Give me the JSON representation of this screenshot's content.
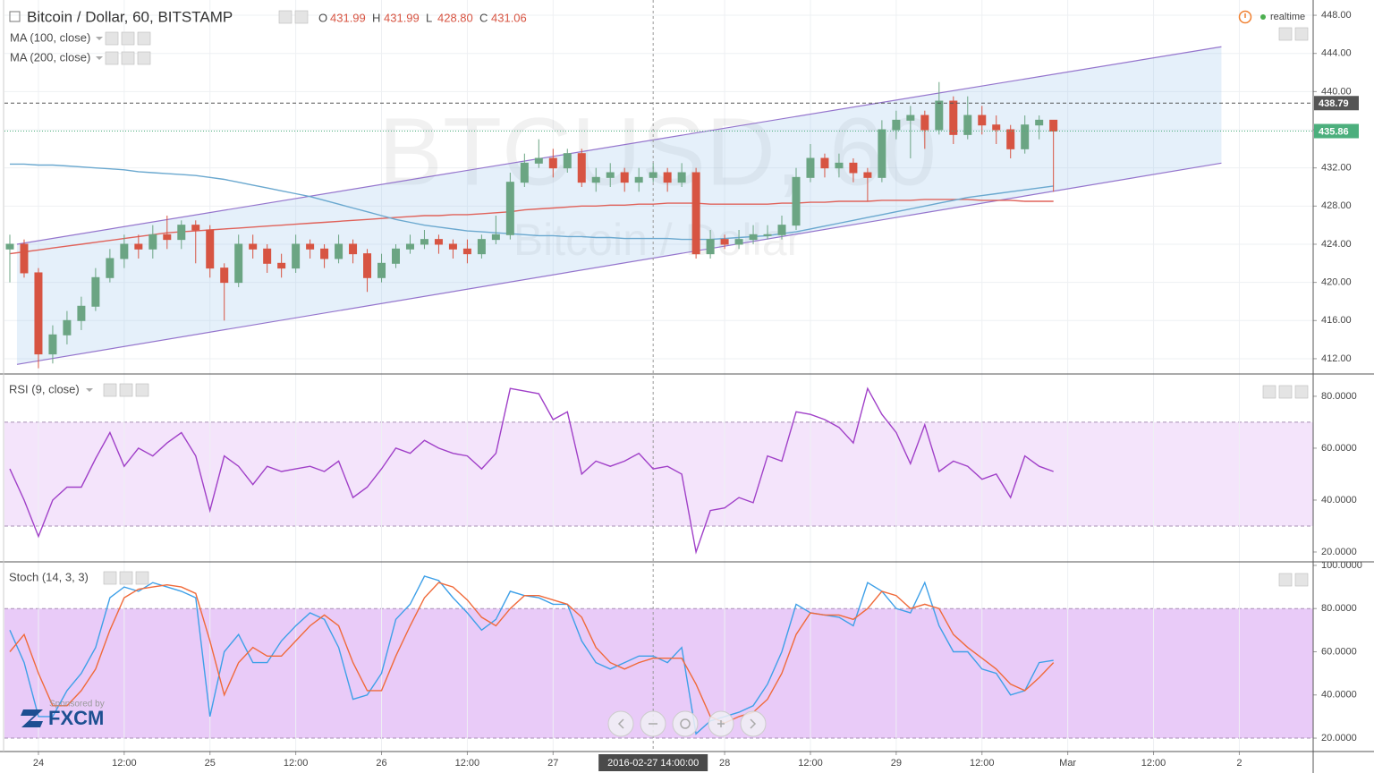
{
  "chart_data": [
    {
      "type": "candlestick",
      "title": "Bitcoin / Dollar, 60, BITSTAMP",
      "ohlc_legend": [
        {
          "key": "O",
          "value": "431.99"
        },
        {
          "key": "H",
          "value": "431.99"
        },
        {
          "key": "L",
          "value": "428.80"
        },
        {
          "key": "C",
          "value": "431.06"
        }
      ],
      "status": "realtime",
      "watermark": "BTCUSD, 60",
      "watermark_subtitle": "Bitcoin / Dollar",
      "sponsor": "Sponsored by",
      "sponsor_name": "FXCM",
      "up_color": "#6ba583",
      "down_color": "#d75442",
      "x": [
        "2016-02-23 20:00",
        "2016-02-23 22:00",
        "2016-02-24 00:00",
        "2016-02-24 02:00",
        "2016-02-24 04:00",
        "2016-02-24 06:00",
        "2016-02-24 08:00",
        "2016-02-24 10:00",
        "2016-02-24 12:00",
        "2016-02-24 14:00",
        "2016-02-24 16:00",
        "2016-02-24 18:00",
        "2016-02-24 20:00",
        "2016-02-24 22:00",
        "2016-02-25 00:00",
        "2016-02-25 02:00",
        "2016-02-25 04:00",
        "2016-02-25 06:00",
        "2016-02-25 08:00",
        "2016-02-25 10:00",
        "2016-02-25 12:00",
        "2016-02-25 14:00",
        "2016-02-25 16:00",
        "2016-02-25 18:00",
        "2016-02-25 20:00",
        "2016-02-25 22:00",
        "2016-02-26 00:00",
        "2016-02-26 02:00",
        "2016-02-26 04:00",
        "2016-02-26 06:00",
        "2016-02-26 08:00",
        "2016-02-26 10:00",
        "2016-02-26 12:00",
        "2016-02-26 14:00",
        "2016-02-26 16:00",
        "2016-02-26 18:00",
        "2016-02-26 20:00",
        "2016-02-26 22:00",
        "2016-02-27 00:00",
        "2016-02-27 02:00",
        "2016-02-27 04:00",
        "2016-02-27 06:00",
        "2016-02-27 08:00",
        "2016-02-27 10:00",
        "2016-02-27 12:00",
        "2016-02-27 14:00",
        "2016-02-27 16:00",
        "2016-02-27 18:00",
        "2016-02-27 20:00",
        "2016-02-27 22:00",
        "2016-02-28 00:00",
        "2016-02-28 02:00",
        "2016-02-28 04:00",
        "2016-02-28 06:00",
        "2016-02-28 08:00",
        "2016-02-28 10:00",
        "2016-02-28 12:00",
        "2016-02-28 14:00",
        "2016-02-28 16:00",
        "2016-02-28 18:00",
        "2016-02-28 20:00",
        "2016-02-28 22:00",
        "2016-02-29 00:00",
        "2016-02-29 02:00",
        "2016-02-29 04:00",
        "2016-02-29 06:00",
        "2016-02-29 08:00",
        "2016-02-29 10:00",
        "2016-02-29 12:00",
        "2016-02-29 14:00",
        "2016-02-29 16:00",
        "2016-02-29 18:00",
        "2016-02-29 20:00",
        "2016-02-29 22:00"
      ],
      "open": [
        423.5,
        424.0,
        421.0,
        412.5,
        414.5,
        416.0,
        417.5,
        420.5,
        422.5,
        424.0,
        423.5,
        425.0,
        424.5,
        426.0,
        425.5,
        421.5,
        420.0,
        424.0,
        423.5,
        422.0,
        421.5,
        424.0,
        423.5,
        422.5,
        424.0,
        423.0,
        420.5,
        422.0,
        423.5,
        424.0,
        424.5,
        424.0,
        423.5,
        423.0,
        424.5,
        425.0,
        430.5,
        432.5,
        433.0,
        432.0,
        433.5,
        430.5,
        431.0,
        431.5,
        430.5,
        431.0,
        431.5,
        430.5,
        431.5,
        423.0,
        424.5,
        424.0,
        424.5,
        425.0,
        425.0,
        426.0,
        431.0,
        433.0,
        432.0,
        432.5,
        431.5,
        431.0,
        436.0,
        437.0,
        437.5,
        436.0,
        439.0,
        435.5,
        437.5,
        436.5,
        436.0,
        434.0,
        436.5,
        437.0
      ],
      "high": [
        425,
        424.5,
        421.5,
        415.5,
        417,
        418.5,
        421.5,
        423.5,
        425,
        425,
        426,
        427,
        426.5,
        426.5,
        426,
        422,
        425,
        425,
        424,
        423,
        425,
        424.5,
        424,
        425,
        424.5,
        423.5,
        423,
        424,
        425,
        425.5,
        425,
        424.5,
        424.5,
        425,
        427,
        431.5,
        433.5,
        435,
        434,
        434,
        434,
        432,
        432.5,
        432,
        432,
        432.5,
        432,
        432.5,
        432,
        425.5,
        425,
        425.5,
        426,
        426,
        427,
        432,
        434.5,
        433.5,
        433.5,
        433,
        432,
        437,
        438,
        438.5,
        438,
        441,
        439.5,
        439.5,
        438.5,
        437.5,
        436.5,
        437.5,
        437.5,
        437
      ],
      "low": [
        420,
        420.5,
        411,
        411.5,
        413.5,
        415,
        417,
        420,
        421.5,
        422.5,
        422.5,
        423.5,
        423.5,
        422,
        420.5,
        416,
        419.5,
        422.5,
        421,
        420.5,
        421,
        422.5,
        421.5,
        422,
        422,
        419,
        420,
        421.5,
        423,
        423.5,
        423,
        422.5,
        422,
        422.5,
        424,
        424.5,
        430,
        432,
        431,
        431.5,
        430,
        429.5,
        430,
        429.5,
        429.5,
        430.5,
        429.5,
        430,
        422.5,
        422.5,
        423.5,
        423.5,
        424,
        424.5,
        424.5,
        425.5,
        430.5,
        431,
        431,
        430.5,
        428.5,
        430.5,
        435,
        433,
        434,
        435.5,
        434.5,
        435,
        435.5,
        434.5,
        433,
        433.5,
        435,
        429.5
      ],
      "close": [
        424.0,
        421.0,
        412.5,
        414.5,
        416.0,
        417.5,
        420.5,
        422.5,
        424.0,
        423.5,
        425.0,
        424.5,
        426.0,
        425.5,
        421.5,
        420.0,
        424.0,
        423.5,
        422.0,
        421.5,
        424.0,
        423.5,
        422.5,
        424.0,
        423.0,
        420.5,
        422.0,
        423.5,
        424.0,
        424.5,
        424.0,
        423.5,
        423.0,
        424.5,
        425.0,
        430.5,
        432.5,
        433.0,
        432.0,
        433.5,
        430.5,
        431.0,
        431.5,
        430.5,
        431.0,
        431.5,
        430.5,
        431.5,
        423.0,
        424.5,
        424.0,
        424.5,
        425.0,
        425.0,
        426.0,
        431.0,
        433.0,
        432.0,
        432.5,
        431.5,
        431.0,
        436.0,
        437.0,
        437.5,
        436.0,
        439.0,
        435.5,
        437.5,
        436.5,
        436.0,
        434.0,
        436.5,
        437.0,
        435.86
      ],
      "series": [
        {
          "name": "MA (100, close)",
          "color": "#e0625a",
          "values": [
            423.0,
            423.2,
            423.4,
            423.6,
            423.8,
            424.0,
            424.2,
            424.4,
            424.6,
            424.8,
            425.0,
            425.2,
            425.3,
            425.4,
            425.5,
            425.6,
            425.7,
            425.8,
            425.9,
            426.0,
            426.1,
            426.2,
            426.3,
            426.4,
            426.5,
            426.6,
            426.7,
            426.8,
            426.9,
            427.0,
            427.0,
            427.1,
            427.1,
            427.2,
            427.3,
            427.4,
            427.6,
            427.7,
            427.8,
            427.9,
            428.0,
            428.0,
            428.1,
            428.1,
            428.2,
            428.2,
            428.3,
            428.3,
            428.3,
            428.2,
            428.2,
            428.2,
            428.2,
            428.2,
            428.3,
            428.3,
            428.4,
            428.4,
            428.5,
            428.5,
            428.5,
            428.6,
            428.6,
            428.6,
            428.7,
            428.7,
            428.7,
            428.7,
            428.6,
            428.6,
            428.6,
            428.5,
            428.5,
            428.5
          ]
        },
        {
          "name": "MA (200, close)",
          "color": "#6aa8cf",
          "values": [
            432.4,
            432.4,
            432.3,
            432.3,
            432.2,
            432.1,
            432.0,
            431.9,
            431.8,
            431.6,
            431.5,
            431.4,
            431.3,
            431.2,
            431.0,
            430.8,
            430.5,
            430.2,
            429.9,
            429.6,
            429.3,
            429.0,
            428.6,
            428.2,
            427.8,
            427.4,
            427.0,
            426.6,
            426.3,
            426.0,
            425.8,
            425.6,
            425.4,
            425.3,
            425.2,
            425.1,
            425.0,
            424.9,
            424.9,
            424.8,
            424.8,
            424.7,
            424.7,
            424.6,
            424.6,
            424.6,
            424.6,
            424.5,
            424.5,
            424.5,
            424.6,
            424.7,
            424.8,
            424.9,
            425.1,
            425.3,
            425.6,
            425.9,
            426.2,
            426.5,
            426.8,
            427.1,
            427.4,
            427.7,
            428.0,
            428.3,
            428.6,
            428.9,
            429.1,
            429.3,
            429.5,
            429.7,
            429.9,
            430.1
          ]
        }
      ],
      "channel": {
        "x": [
          "2016-02-23 21:00",
          "2016-03-01 21:30"
        ],
        "upper": [
          424.0,
          444.7
        ],
        "lower": [
          411.4,
          432.5
        ],
        "color": "#9575cd"
      },
      "price_lines": [
        {
          "value": 438.79,
          "color": "#555555"
        },
        {
          "value": 435.86,
          "color": "#4caf7d"
        }
      ],
      "crosshair": {
        "x": "2016-02-27 14:00",
        "label": "2016-02-27 14:00:00"
      },
      "xlim": [
        "2016-02-23 19:15",
        "2016-03-02 10:20"
      ],
      "xticks": [
        {
          "value": "2016-02-24 00:00",
          "label": "24"
        },
        {
          "value": "2016-02-24 12:00",
          "label": "12:00"
        },
        {
          "value": "2016-02-25 00:00",
          "label": "25"
        },
        {
          "value": "2016-02-25 12:00",
          "label": "12:00"
        },
        {
          "value": "2016-02-26 00:00",
          "label": "26"
        },
        {
          "value": "2016-02-26 12:00",
          "label": "12:00"
        },
        {
          "value": "2016-02-27 00:00",
          "label": "27"
        },
        {
          "value": "2016-02-28 00:00",
          "label": "28"
        },
        {
          "value": "2016-02-28 12:00",
          "label": "12:00"
        },
        {
          "value": "2016-02-29 00:00",
          "label": "29"
        },
        {
          "value": "2016-02-29 12:00",
          "label": "12:00"
        },
        {
          "value": "2016-03-01 00:00",
          "label": "Mar"
        },
        {
          "value": "2016-03-01 12:00",
          "label": "12:00"
        },
        {
          "value": "2016-03-02 00:00",
          "label": "2"
        }
      ],
      "ylim": [
        410.4,
        449.6
      ],
      "yticks": [
        {
          "value": 412,
          "label": "412.00"
        },
        {
          "value": 416,
          "label": "416.00"
        },
        {
          "value": 420,
          "label": "420.00"
        },
        {
          "value": 424,
          "label": "424.00"
        },
        {
          "value": 428,
          "label": "428.00"
        },
        {
          "value": 432,
          "label": "432.00"
        },
        {
          "value": 436,
          "label": "436.00"
        },
        {
          "value": 440,
          "label": "440.00"
        },
        {
          "value": 444,
          "label": "444.00"
        },
        {
          "value": 448,
          "label": "448.00"
        }
      ],
      "grid": true
    },
    {
      "type": "line",
      "series": [
        {
          "name": "RSI (9, close)",
          "color": "#a040c8",
          "values": [
            52,
            40,
            26,
            40,
            45,
            45,
            56,
            66,
            53,
            60,
            57,
            62,
            66,
            57,
            36,
            57,
            53,
            46,
            53,
            51,
            52,
            53,
            51,
            55,
            41,
            45,
            52,
            60,
            58,
            63,
            60,
            58,
            57,
            52,
            58,
            83,
            82,
            81,
            71,
            74,
            50,
            55,
            53,
            55,
            58,
            52,
            53,
            50,
            20,
            36,
            37,
            41,
            39,
            57,
            55,
            74,
            73,
            71,
            68,
            62,
            83,
            73,
            66,
            54,
            69,
            51,
            55,
            53,
            48,
            50,
            41,
            57,
            53,
            51
          ]
        }
      ],
      "band": [
        30,
        70
      ],
      "band_color": "#f4e4fb",
      "ylim": [
        16.2,
        87.9
      ],
      "yticks": [
        {
          "value": 20,
          "label": "20.0000"
        },
        {
          "value": 40,
          "label": "40.0000"
        },
        {
          "value": 60,
          "label": "60.0000"
        },
        {
          "value": 80,
          "label": "80.0000"
        }
      ]
    },
    {
      "type": "line",
      "title": "Stoch (14, 3, 3)",
      "series": [
        {
          "color": "#3ea0e8",
          "values": [
            70,
            55,
            30,
            30,
            42,
            50,
            62,
            85,
            90,
            88,
            92,
            90,
            88,
            85,
            30,
            60,
            68,
            55,
            55,
            65,
            72,
            78,
            75,
            62,
            38,
            40,
            50,
            75,
            82,
            95,
            93,
            85,
            78,
            70,
            75,
            88,
            86,
            85,
            82,
            82,
            65,
            55,
            52,
            55,
            58,
            58,
            55,
            62,
            22,
            28,
            30,
            32,
            35,
            45,
            60,
            82,
            78,
            77,
            76,
            72,
            92,
            88,
            80,
            78,
            92,
            72,
            60,
            60,
            52,
            50,
            40,
            42,
            55,
            56
          ]
        },
        {
          "color": "#f06a3a",
          "values": [
            60,
            68,
            50,
            35,
            35,
            42,
            52,
            70,
            85,
            89,
            90,
            91,
            90,
            87,
            65,
            40,
            55,
            62,
            58,
            58,
            65,
            72,
            77,
            72,
            55,
            42,
            42,
            58,
            72,
            85,
            92,
            90,
            84,
            76,
            72,
            80,
            86,
            86,
            84,
            82,
            76,
            62,
            55,
            52,
            55,
            57,
            57,
            57,
            45,
            30,
            27,
            30,
            32,
            38,
            50,
            68,
            78,
            77,
            77,
            75,
            80,
            88,
            86,
            80,
            82,
            80,
            68,
            62,
            57,
            52,
            45,
            42,
            48,
            55
          ]
        }
      ],
      "band": [
        20,
        80
      ],
      "band_color": "#e9cbf8",
      "ylim": [
        13.8,
        100.8
      ],
      "yticks": [
        {
          "value": 20,
          "label": "20.0000"
        },
        {
          "value": 40,
          "label": "40.0000"
        },
        {
          "value": 60,
          "label": "60.0000"
        },
        {
          "value": 80,
          "label": "80.0000"
        },
        {
          "value": 100,
          "label": "100.0000"
        }
      ]
    }
  ]
}
